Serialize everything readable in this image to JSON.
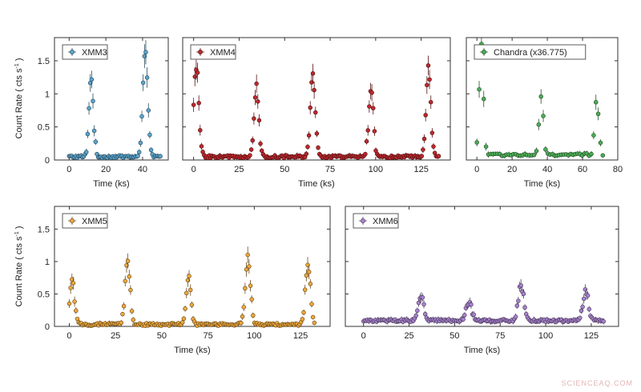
{
  "watermark": "SCIENCEAQ.COM",
  "y_axis_label": "Count Rate ( cts s",
  "y_axis_label_exp": "-1",
  "y_axis_label_end": " )",
  "chart_data": [
    {
      "type": "scatter",
      "legend": "XMM3",
      "color": "#5aa6cf",
      "xlabel": "Time (ks)",
      "ylabel": "Count Rate ( cts s-1 )",
      "xlim": [
        -8,
        54
      ],
      "ylim": [
        0,
        1.85
      ],
      "xticks": [
        0,
        20,
        40
      ],
      "yticks": [
        0,
        0.5,
        1,
        1.5
      ],
      "baseline": 0.05,
      "span": [
        0,
        50
      ],
      "flares": [
        {
          "t": 12,
          "a": 1.2,
          "w": 1.2
        },
        {
          "t": 41.5,
          "a": 1.65,
          "w": 1.3
        }
      ]
    },
    {
      "type": "scatter",
      "legend": "XMM4",
      "color": "#c0282d",
      "xlabel": "Time (ks)",
      "ylabel": "",
      "xlim": [
        -6,
        141
      ],
      "ylim": [
        0,
        1.85
      ],
      "xticks": [
        0,
        25,
        50,
        75,
        100,
        125
      ],
      "yticks": [
        0,
        0.5,
        1,
        1.5
      ],
      "baseline": 0.05,
      "span": [
        0,
        135
      ],
      "flares": [
        {
          "t": 1.5,
          "a": 1.35,
          "w": 1.4
        },
        {
          "t": 34.5,
          "a": 1.05,
          "w": 1.3
        },
        {
          "t": 65.5,
          "a": 1.25,
          "w": 1.3
        },
        {
          "t": 97.5,
          "a": 1.0,
          "w": 1.3
        },
        {
          "t": 129,
          "a": 1.35,
          "w": 1.3
        }
      ]
    },
    {
      "type": "scatter",
      "legend": "Chandra (x36.775)",
      "color": "#4cae57",
      "xlabel": "Time (ks)",
      "ylabel": "",
      "xlim": [
        -6,
        80
      ],
      "ylim": [
        0,
        1.85
      ],
      "xticks": [
        0,
        20,
        40,
        60,
        80
      ],
      "yticks": [
        0,
        0.5,
        1,
        1.5
      ],
      "baseline": 0.08,
      "span": [
        0,
        72
      ],
      "flares": [
        {
          "t": 2.5,
          "a": 1.7,
          "w": 1.2
        },
        {
          "t": 36.5,
          "a": 0.85,
          "w": 1.2
        },
        {
          "t": 68,
          "a": 0.9,
          "w": 1.1
        }
      ]
    },
    {
      "type": "scatter",
      "legend": "XMM5",
      "color": "#efa93c",
      "xlabel": "Time (ks)",
      "ylabel": "Count Rate ( cts s-1 )",
      "xlim": [
        -8,
        141
      ],
      "ylim": [
        0,
        1.85
      ],
      "xticks": [
        0,
        25,
        50,
        75,
        100,
        125
      ],
      "yticks": [
        0,
        0.5,
        1,
        1.5
      ],
      "baseline": 0.03,
      "span": [
        0,
        133
      ],
      "flares": [
        {
          "t": 1.5,
          "a": 0.7,
          "w": 1.3
        },
        {
          "t": 31.5,
          "a": 1.0,
          "w": 1.3
        },
        {
          "t": 64.5,
          "a": 0.78,
          "w": 1.2
        },
        {
          "t": 96.5,
          "a": 1.05,
          "w": 1.4
        },
        {
          "t": 129,
          "a": 0.95,
          "w": 1.3
        }
      ]
    },
    {
      "type": "scatter",
      "legend": "XMM6",
      "color": "#a983cf",
      "xlabel": "Time (ks)",
      "ylabel": "",
      "xlim": [
        -10,
        140
      ],
      "ylim": [
        0,
        1.85
      ],
      "xticks": [
        0,
        25,
        50,
        75,
        100,
        125
      ],
      "yticks": [
        0,
        0.5,
        1,
        1.5
      ],
      "baseline": 0.09,
      "span": [
        0,
        132
      ],
      "flares": [
        {
          "t": 31.5,
          "a": 0.38,
          "w": 1.5
        },
        {
          "t": 58,
          "a": 0.28,
          "w": 1.6
        },
        {
          "t": 86.5,
          "a": 0.55,
          "w": 1.5
        },
        {
          "t": 122,
          "a": 0.45,
          "w": 1.5
        }
      ]
    }
  ]
}
